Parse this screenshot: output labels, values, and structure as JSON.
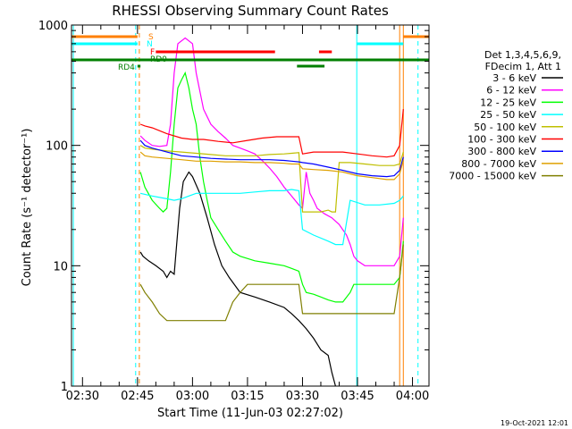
{
  "chart_data": {
    "type": "line",
    "title": "RHESSI Observing Summary Count Rates",
    "xlabel": "Start Time (11-Jun-03 02:27:02)",
    "ylabel": "Count Rate (s⁻¹ detector⁻¹)",
    "yscale": "log",
    "ylim": [
      1,
      1000
    ],
    "xlim_minutes_after_start": [
      0,
      97.5
    ],
    "x_tick_labels": [
      {
        "label": "02:30",
        "t": 3
      },
      {
        "label": "02:45",
        "t": 18
      },
      {
        "label": "03:00",
        "t": 33
      },
      {
        "label": "03:15",
        "t": 48
      },
      {
        "label": "03:30",
        "t": 63
      },
      {
        "label": "03:45",
        "t": 78
      },
      {
        "label": "04:00",
        "t": 93
      }
    ],
    "y_tick_labels": [
      {
        "label": "1",
        "v": 1
      },
      {
        "label": "10",
        "v": 10
      },
      {
        "label": "100",
        "v": 100
      },
      {
        "label": "1000",
        "v": 1000
      }
    ],
    "legend_header": [
      "Det 1,3,4,5,6,9,",
      "FDecim 1, Att 1"
    ],
    "legend_placement": "right",
    "footer_date": "19-Oct-2021 12:01",
    "flags": [
      {
        "label": "S",
        "color": "#ff7f00",
        "segments": [
          [
            0,
            18
          ],
          [
            90.5,
            97.5
          ]
        ]
      },
      {
        "label": "N",
        "color": "#00ffff",
        "segments": [
          [
            0,
            18
          ],
          [
            77.8,
            90.5
          ]
        ]
      },
      {
        "label": "F",
        "color": "#ff0000",
        "segments": [
          [
            23,
            55.5
          ],
          [
            67.5,
            71
          ]
        ]
      },
      {
        "label": "RD0",
        "color": "#007f00",
        "segments": [
          [
            0,
            97.5
          ]
        ]
      },
      {
        "label": "RD4",
        "color": "#007f00",
        "segments": [
          [
            18,
            18.8
          ],
          [
            61.5,
            69
          ]
        ]
      }
    ],
    "vertical_markers": [
      {
        "t": 0.5,
        "color": "#00ffff",
        "style": "solid"
      },
      {
        "t": 17.5,
        "color": "#00ffff",
        "style": "dashed"
      },
      {
        "t": 18.5,
        "color": "#ff7f00",
        "style": "dashed"
      },
      {
        "t": 77.8,
        "color": "#00ffff",
        "style": "solid"
      },
      {
        "t": 89.5,
        "color": "#ff7f00",
        "style": "solid"
      },
      {
        "t": 90.5,
        "color": "#ff7f00",
        "style": "solid"
      },
      {
        "t": 94.5,
        "color": "#00ffff",
        "style": "dashed"
      }
    ],
    "series": [
      {
        "name": "3 - 6 keV",
        "color": "#000000",
        "points": [
          [
            18.8,
            13
          ],
          [
            19.5,
            12
          ],
          [
            21,
            11
          ],
          [
            23,
            10
          ],
          [
            25,
            9
          ],
          [
            26,
            8
          ],
          [
            27,
            9
          ],
          [
            28,
            8.5
          ],
          [
            29.5,
            30
          ],
          [
            30.5,
            50
          ],
          [
            32,
            60
          ],
          [
            33,
            55
          ],
          [
            35,
            40
          ],
          [
            37,
            25
          ],
          [
            39,
            15
          ],
          [
            41,
            10
          ],
          [
            43,
            8
          ],
          [
            46,
            6
          ],
          [
            50,
            5.5
          ],
          [
            54,
            5
          ],
          [
            58,
            4.5
          ],
          [
            60,
            4
          ],
          [
            62,
            3.5
          ],
          [
            64,
            3
          ],
          [
            66,
            2.5
          ],
          [
            68,
            2
          ],
          [
            70,
            1.8
          ],
          [
            71,
            1.3
          ],
          [
            72,
            1
          ]
        ]
      },
      {
        "name": "6 - 12 keV",
        "color": "#ff00ff",
        "points": [
          [
            18.8,
            120
          ],
          [
            20,
            110
          ],
          [
            22,
            100
          ],
          [
            24,
            98
          ],
          [
            26,
            100
          ],
          [
            27,
            150
          ],
          [
            28,
            400
          ],
          [
            29,
            700
          ],
          [
            31,
            780
          ],
          [
            33,
            700
          ],
          [
            34,
            400
          ],
          [
            36,
            200
          ],
          [
            38,
            150
          ],
          [
            40,
            130
          ],
          [
            42,
            115
          ],
          [
            44,
            100
          ],
          [
            46,
            95
          ],
          [
            48,
            90
          ],
          [
            50,
            85
          ],
          [
            52,
            75
          ],
          [
            54,
            65
          ],
          [
            56,
            55
          ],
          [
            58,
            45
          ],
          [
            60,
            38
          ],
          [
            62,
            32
          ],
          [
            63,
            30
          ],
          [
            64,
            60
          ],
          [
            65,
            40
          ],
          [
            66,
            35
          ],
          [
            67,
            30
          ],
          [
            69,
            27
          ],
          [
            71,
            25
          ],
          [
            73,
            22
          ],
          [
            75,
            18
          ],
          [
            76,
            15
          ],
          [
            77,
            12
          ],
          [
            78,
            11
          ],
          [
            80,
            10
          ],
          [
            84,
            10
          ],
          [
            88,
            10
          ],
          [
            89.5,
            12
          ],
          [
            90.5,
            25
          ]
        ]
      },
      {
        "name": "12 - 25 keV",
        "color": "#00ff00",
        "points": [
          [
            18.8,
            60
          ],
          [
            20,
            45
          ],
          [
            22,
            35
          ],
          [
            24,
            30
          ],
          [
            25,
            28
          ],
          [
            26,
            30
          ],
          [
            27,
            60
          ],
          [
            28,
            150
          ],
          [
            29,
            300
          ],
          [
            30,
            350
          ],
          [
            31,
            400
          ],
          [
            32,
            300
          ],
          [
            33,
            200
          ],
          [
            34,
            150
          ],
          [
            35,
            80
          ],
          [
            36,
            50
          ],
          [
            37,
            35
          ],
          [
            38,
            25
          ],
          [
            40,
            20
          ],
          [
            42,
            16
          ],
          [
            44,
            13
          ],
          [
            46,
            12
          ],
          [
            50,
            11
          ],
          [
            54,
            10.5
          ],
          [
            58,
            10
          ],
          [
            60,
            9.5
          ],
          [
            62,
            9
          ],
          [
            63,
            7
          ],
          [
            64,
            6
          ],
          [
            66,
            5.8
          ],
          [
            68,
            5.5
          ],
          [
            70,
            5.2
          ],
          [
            72,
            5
          ],
          [
            74,
            5
          ],
          [
            76,
            6
          ],
          [
            77,
            7
          ],
          [
            80,
            7
          ],
          [
            84,
            7
          ],
          [
            88,
            7
          ],
          [
            89.5,
            8
          ],
          [
            90.5,
            16
          ]
        ]
      },
      {
        "name": "25 - 50 keV",
        "color": "#00ffff",
        "points": [
          [
            18.8,
            40
          ],
          [
            22,
            38
          ],
          [
            26,
            36
          ],
          [
            28,
            35
          ],
          [
            30,
            36
          ],
          [
            32,
            38
          ],
          [
            34,
            40
          ],
          [
            38,
            40
          ],
          [
            42,
            40
          ],
          [
            46,
            40
          ],
          [
            50,
            41
          ],
          [
            54,
            42
          ],
          [
            58,
            42
          ],
          [
            60,
            43
          ],
          [
            62,
            42
          ],
          [
            63,
            20
          ],
          [
            66,
            18
          ],
          [
            70,
            16
          ],
          [
            72,
            15
          ],
          [
            74,
            15
          ],
          [
            76,
            35
          ],
          [
            80,
            32
          ],
          [
            84,
            32
          ],
          [
            88,
            33
          ],
          [
            89.5,
            35
          ],
          [
            90.5,
            38
          ]
        ]
      },
      {
        "name": "50 - 100 keV",
        "color": "#bfbf00",
        "points": [
          [
            18.8,
            100
          ],
          [
            20,
            95
          ],
          [
            22,
            93
          ],
          [
            26,
            90
          ],
          [
            30,
            88
          ],
          [
            34,
            86
          ],
          [
            38,
            84
          ],
          [
            42,
            82
          ],
          [
            46,
            82
          ],
          [
            50,
            82
          ],
          [
            54,
            84
          ],
          [
            58,
            85
          ],
          [
            60,
            86
          ],
          [
            62,
            87
          ],
          [
            63,
            28
          ],
          [
            66,
            28
          ],
          [
            68,
            28
          ],
          [
            70,
            29
          ],
          [
            71,
            28
          ],
          [
            72,
            28
          ],
          [
            73,
            72
          ],
          [
            76,
            72
          ],
          [
            80,
            70
          ],
          [
            84,
            68
          ],
          [
            88,
            68
          ],
          [
            89.5,
            70
          ],
          [
            90.5,
            88
          ]
        ]
      },
      {
        "name": "100 - 300 keV",
        "color": "#ff0000",
        "points": [
          [
            18.8,
            150
          ],
          [
            20,
            145
          ],
          [
            22,
            140
          ],
          [
            26,
            125
          ],
          [
            30,
            115
          ],
          [
            33,
            112
          ],
          [
            36,
            112
          ],
          [
            40,
            108
          ],
          [
            44,
            105
          ],
          [
            48,
            110
          ],
          [
            52,
            115
          ],
          [
            56,
            118
          ],
          [
            60,
            118
          ],
          [
            62,
            118
          ],
          [
            63,
            85
          ],
          [
            66,
            88
          ],
          [
            70,
            88
          ],
          [
            74,
            88
          ],
          [
            78,
            85
          ],
          [
            82,
            82
          ],
          [
            86,
            80
          ],
          [
            88,
            82
          ],
          [
            89.5,
            100
          ],
          [
            90.5,
            200
          ]
        ]
      },
      {
        "name": "300 - 800 keV",
        "color": "#0000ff",
        "points": [
          [
            18.8,
            110
          ],
          [
            20,
            100
          ],
          [
            22,
            95
          ],
          [
            26,
            88
          ],
          [
            30,
            82
          ],
          [
            34,
            80
          ],
          [
            38,
            78
          ],
          [
            42,
            77
          ],
          [
            46,
            76
          ],
          [
            50,
            76
          ],
          [
            54,
            76
          ],
          [
            58,
            75
          ],
          [
            60,
            74
          ],
          [
            62,
            73
          ],
          [
            63,
            72
          ],
          [
            66,
            70
          ],
          [
            70,
            66
          ],
          [
            74,
            62
          ],
          [
            78,
            58
          ],
          [
            82,
            56
          ],
          [
            86,
            55
          ],
          [
            88,
            56
          ],
          [
            89.5,
            62
          ],
          [
            90.5,
            80
          ]
        ]
      },
      {
        "name": "800 - 7000 keV",
        "color": "#dfa000",
        "points": [
          [
            18.8,
            88
          ],
          [
            20,
            82
          ],
          [
            22,
            80
          ],
          [
            26,
            78
          ],
          [
            30,
            76
          ],
          [
            34,
            74
          ],
          [
            38,
            74
          ],
          [
            42,
            73
          ],
          [
            46,
            73
          ],
          [
            50,
            72
          ],
          [
            54,
            72
          ],
          [
            58,
            71
          ],
          [
            60,
            70
          ],
          [
            62,
            70
          ],
          [
            63,
            64
          ],
          [
            66,
            63
          ],
          [
            70,
            62
          ],
          [
            74,
            60
          ],
          [
            78,
            56
          ],
          [
            82,
            54
          ],
          [
            86,
            52
          ],
          [
            88,
            52
          ],
          [
            89.5,
            58
          ],
          [
            90.5,
            75
          ]
        ]
      },
      {
        "name": "7000 - 15000 keV",
        "color": "#7f7f00",
        "points": [
          [
            18.8,
            7
          ],
          [
            20,
            6
          ],
          [
            22,
            5
          ],
          [
            24,
            4
          ],
          [
            26,
            3.5
          ],
          [
            28,
            3.5
          ],
          [
            30,
            3.5
          ],
          [
            34,
            3.5
          ],
          [
            38,
            3.5
          ],
          [
            42,
            3.5
          ],
          [
            44,
            5
          ],
          [
            46,
            6
          ],
          [
            48,
            7
          ],
          [
            52,
            7
          ],
          [
            56,
            7
          ],
          [
            60,
            7
          ],
          [
            62,
            7
          ],
          [
            63,
            4
          ],
          [
            66,
            4
          ],
          [
            70,
            4
          ],
          [
            74,
            4
          ],
          [
            78,
            4
          ],
          [
            82,
            4
          ],
          [
            86,
            4
          ],
          [
            88,
            4
          ],
          [
            89.5,
            8
          ],
          [
            90.5,
            15
          ]
        ]
      }
    ]
  }
}
